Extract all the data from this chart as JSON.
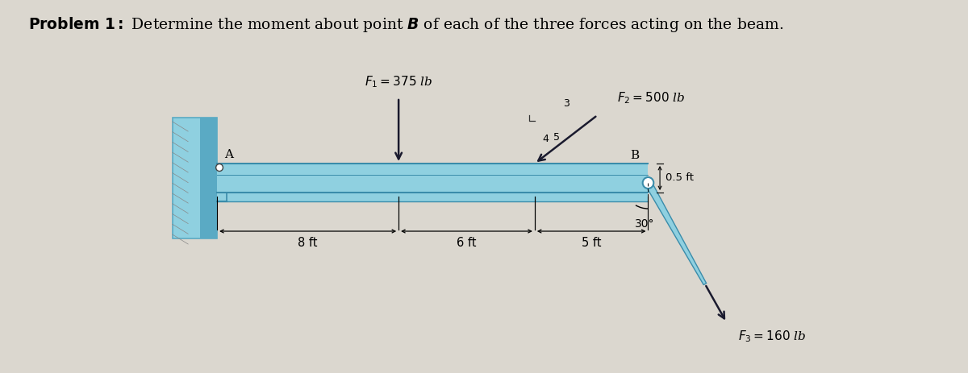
{
  "title_bold": "Problem 1:",
  "title_rest": " Determine the moment about point ",
  "title_B": "B",
  "title_end": " of each of the three forces acting on the beam.",
  "title_fontsize": 13.5,
  "bg_color": "#dbd7cf",
  "beam_light": "#8fd0e0",
  "beam_mid": "#6bbdd4",
  "beam_dark": "#3a8caa",
  "wall_light": "#8fd0e0",
  "wall_dark": "#5aaac4",
  "F1_label": "$F_1 = 375$ lb",
  "F2_label": "$F_2 = 500$ lb",
  "F3_label": "$F_3 = 160$ lb",
  "d1_label": "8 ft",
  "d2_label": "6 ft",
  "d3_label": "5 ft",
  "offset_label": "0.5 ft",
  "angle_label": "30°",
  "A_label": "A",
  "B_label": "B",
  "r5": "5",
  "r4": "4",
  "r3": "3"
}
